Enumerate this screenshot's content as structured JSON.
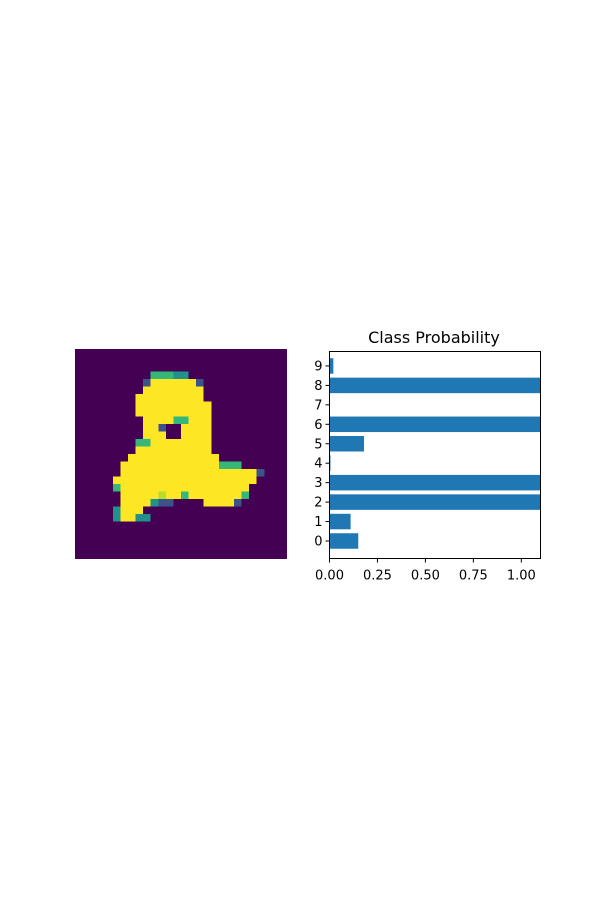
{
  "image_panel": {
    "background_color": "#440154",
    "digit_color": "#fde725",
    "edge_colors": [
      "#35b779",
      "#21918c",
      "#3b528b",
      "#482878",
      "#b5de2b"
    ]
  },
  "chart_data": {
    "type": "bar",
    "orientation": "horizontal",
    "title": "Class Probability",
    "xlabel": "",
    "ylabel": "",
    "categories": [
      "0",
      "1",
      "2",
      "3",
      "4",
      "5",
      "6",
      "7",
      "8",
      "9"
    ],
    "values": [
      0.15,
      0.11,
      1.1,
      1.1,
      0.005,
      0.18,
      1.1,
      0.0,
      1.1,
      0.02
    ],
    "xlim": [
      0,
      1.1
    ],
    "xticks": [
      "0.00",
      "0.25",
      "0.50",
      "0.75",
      "1.00"
    ],
    "xtick_values": [
      0,
      0.25,
      0.5,
      0.75,
      1.0
    ],
    "bar_color": "#1f77b4",
    "grid": false
  }
}
